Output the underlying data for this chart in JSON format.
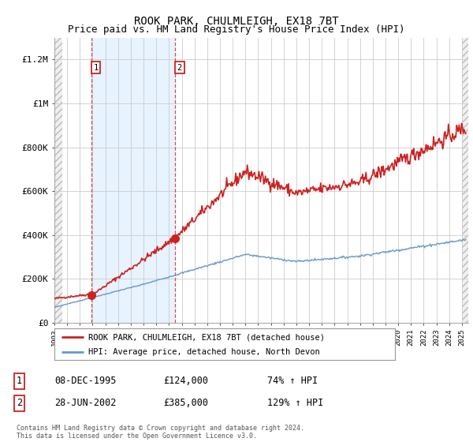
{
  "title": "ROOK PARK, CHULMLEIGH, EX18 7BT",
  "subtitle": "Price paid vs. HM Land Registry's House Price Index (HPI)",
  "ylabel_ticks": [
    "£0",
    "£200K",
    "£400K",
    "£600K",
    "£800K",
    "£1M",
    "£1.2M"
  ],
  "ytick_values": [
    0,
    200000,
    400000,
    600000,
    800000,
    1000000,
    1200000
  ],
  "ylim": [
    0,
    1300000
  ],
  "xlim_start": 1993.0,
  "xlim_end": 2025.5,
  "background_color": "#ffffff",
  "plot_bg_color": "#ffffff",
  "hpi_color": "#6699cc",
  "price_color": "#cc2222",
  "marker1_x": 1995.92,
  "marker1_y": 124000,
  "marker2_x": 2002.49,
  "marker2_y": 385000,
  "vline1_x": 1995.92,
  "vline2_x": 2002.49,
  "blue_fill_color": "#ddeeff",
  "hatch_color": "#cccccc",
  "grid_color": "#cccccc",
  "legend_label1": "ROOK PARK, CHULMLEIGH, EX18 7BT (detached house)",
  "legend_label2": "HPI: Average price, detached house, North Devon",
  "table_row1_num": "1",
  "table_row1_date": "08-DEC-1995",
  "table_row1_price": "£124,000",
  "table_row1_hpi": "74% ↑ HPI",
  "table_row2_num": "2",
  "table_row2_date": "28-JUN-2002",
  "table_row2_price": "£385,000",
  "table_row2_hpi": "129% ↑ HPI",
  "footer": "Contains HM Land Registry data © Crown copyright and database right 2024.\nThis data is licensed under the Open Government Licence v3.0.",
  "title_fontsize": 10,
  "subtitle_fontsize": 9,
  "tick_fontsize": 8,
  "label_box_color": "#cc2222"
}
